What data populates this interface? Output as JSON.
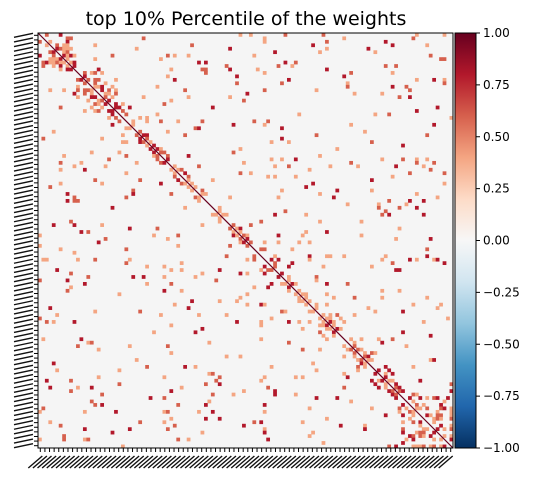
{
  "chart_data": {
    "type": "heatmap",
    "title": "top 10% Percentile of the weights",
    "xlabel": "",
    "ylabel": "",
    "colormap": "RdBu_r",
    "vmin": -1.0,
    "vmax": 1.0,
    "background_value": 0.0,
    "diagonal_value": 1.0,
    "colorbar": {
      "ticks": [
        1.0,
        0.75,
        0.5,
        0.25,
        0.0,
        -0.25,
        -0.5,
        -0.75,
        -1.0
      ],
      "tick_labels": [
        "1.00",
        "0.75",
        "0.50",
        "0.25",
        "0.00",
        "−0.25",
        "−0.50",
        "−0.75",
        "−1.00"
      ]
    },
    "colors": {
      "background": "#f5f5f5",
      "diagonal": "#67001f",
      "positive_light": "#f4a582",
      "positive_mid": "#d6604d",
      "positive_dark": "#b2182b"
    },
    "blocks": [
      {
        "start": 0.0,
        "end": 0.08,
        "density": 0.45
      },
      {
        "start": 0.09,
        "end": 0.19,
        "density": 0.35
      },
      {
        "start": 0.24,
        "end": 0.27,
        "density": 0.4
      },
      {
        "start": 0.5,
        "end": 0.58,
        "density": 0.25
      },
      {
        "start": 0.6,
        "end": 0.66,
        "density": 0.3
      },
      {
        "start": 0.66,
        "end": 0.76,
        "density": 0.15
      },
      {
        "start": 0.8,
        "end": 0.86,
        "density": 0.3
      },
      {
        "start": 0.86,
        "end": 1.0,
        "density": 0.4
      }
    ]
  }
}
